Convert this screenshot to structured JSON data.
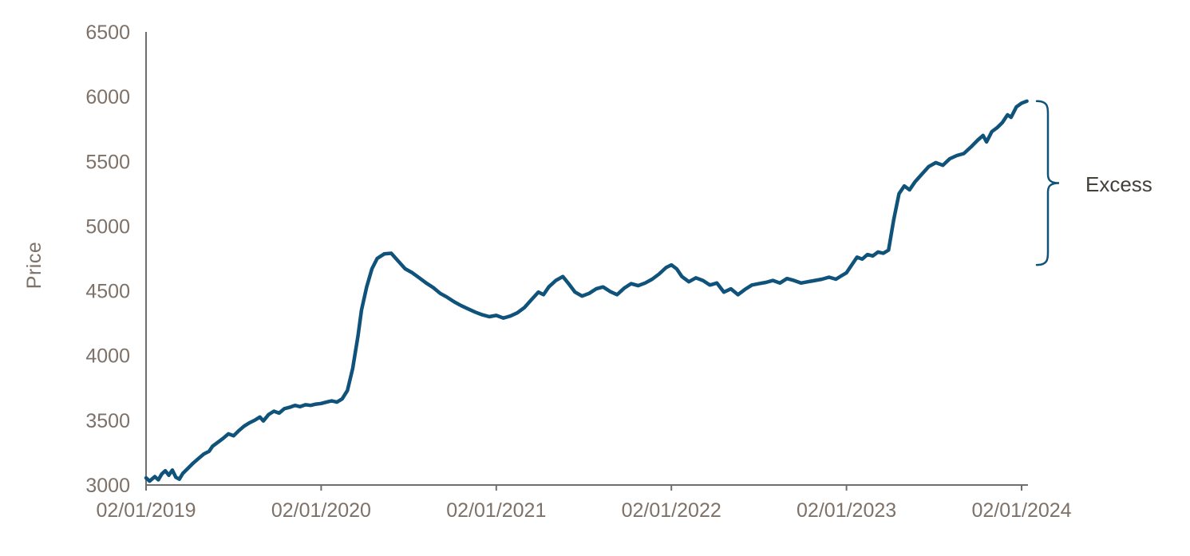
{
  "chart_data": {
    "type": "line",
    "title": "",
    "xlabel": "",
    "ylabel": "Price",
    "grid": false,
    "legend": "none",
    "ylim": [
      3000,
      6500
    ],
    "y_ticks": [
      3000,
      3500,
      4000,
      4500,
      5000,
      5500,
      6000,
      6500
    ],
    "x_tick_labels": [
      "02/01/2019",
      "02/01/2020",
      "02/01/2021",
      "02/01/2022",
      "02/01/2023",
      "02/01/2024"
    ],
    "x_unit": "years since first tick",
    "annotation": {
      "label": "Excess",
      "price_from": 4700,
      "price_to": 5965
    },
    "colors": {
      "line": "#0f527a",
      "axis_line": "#6e6e6e",
      "tick_text": "#7d7168",
      "annotation_text": "#44403a",
      "brace": "#0f527a"
    },
    "series": [
      {
        "name": "Price",
        "points": [
          [
            0.0,
            3055
          ],
          [
            0.02,
            3030
          ],
          [
            0.05,
            3065
          ],
          [
            0.07,
            3040
          ],
          [
            0.09,
            3085
          ],
          [
            0.11,
            3110
          ],
          [
            0.13,
            3075
          ],
          [
            0.15,
            3115
          ],
          [
            0.17,
            3060
          ],
          [
            0.19,
            3045
          ],
          [
            0.21,
            3090
          ],
          [
            0.24,
            3130
          ],
          [
            0.27,
            3170
          ],
          [
            0.3,
            3205
          ],
          [
            0.33,
            3240
          ],
          [
            0.36,
            3260
          ],
          [
            0.38,
            3300
          ],
          [
            0.41,
            3330
          ],
          [
            0.44,
            3360
          ],
          [
            0.47,
            3395
          ],
          [
            0.5,
            3380
          ],
          [
            0.53,
            3420
          ],
          [
            0.56,
            3455
          ],
          [
            0.59,
            3480
          ],
          [
            0.62,
            3500
          ],
          [
            0.65,
            3525
          ],
          [
            0.67,
            3495
          ],
          [
            0.7,
            3545
          ],
          [
            0.73,
            3570
          ],
          [
            0.76,
            3555
          ],
          [
            0.79,
            3590
          ],
          [
            0.82,
            3600
          ],
          [
            0.85,
            3615
          ],
          [
            0.88,
            3605
          ],
          [
            0.91,
            3620
          ],
          [
            0.94,
            3615
          ],
          [
            0.97,
            3625
          ],
          [
            1.0,
            3630
          ],
          [
            1.03,
            3640
          ],
          [
            1.06,
            3650
          ],
          [
            1.09,
            3640
          ],
          [
            1.12,
            3665
          ],
          [
            1.15,
            3730
          ],
          [
            1.18,
            3900
          ],
          [
            1.21,
            4150
          ],
          [
            1.23,
            4350
          ],
          [
            1.26,
            4530
          ],
          [
            1.29,
            4670
          ],
          [
            1.32,
            4750
          ],
          [
            1.36,
            4785
          ],
          [
            1.4,
            4790
          ],
          [
            1.44,
            4730
          ],
          [
            1.48,
            4670
          ],
          [
            1.52,
            4640
          ],
          [
            1.56,
            4600
          ],
          [
            1.6,
            4560
          ],
          [
            1.64,
            4525
          ],
          [
            1.68,
            4480
          ],
          [
            1.72,
            4450
          ],
          [
            1.76,
            4415
          ],
          [
            1.8,
            4385
          ],
          [
            1.84,
            4360
          ],
          [
            1.88,
            4335
          ],
          [
            1.92,
            4315
          ],
          [
            1.96,
            4300
          ],
          [
            2.0,
            4310
          ],
          [
            2.04,
            4290
          ],
          [
            2.08,
            4305
          ],
          [
            2.12,
            4330
          ],
          [
            2.16,
            4370
          ],
          [
            2.2,
            4430
          ],
          [
            2.24,
            4490
          ],
          [
            2.27,
            4470
          ],
          [
            2.3,
            4530
          ],
          [
            2.34,
            4580
          ],
          [
            2.38,
            4610
          ],
          [
            2.41,
            4560
          ],
          [
            2.45,
            4490
          ],
          [
            2.49,
            4460
          ],
          [
            2.53,
            4480
          ],
          [
            2.57,
            4515
          ],
          [
            2.61,
            4530
          ],
          [
            2.65,
            4495
          ],
          [
            2.69,
            4470
          ],
          [
            2.73,
            4520
          ],
          [
            2.77,
            4555
          ],
          [
            2.81,
            4540
          ],
          [
            2.85,
            4560
          ],
          [
            2.89,
            4590
          ],
          [
            2.93,
            4630
          ],
          [
            2.97,
            4680
          ],
          [
            3.0,
            4700
          ],
          [
            3.03,
            4670
          ],
          [
            3.06,
            4610
          ],
          [
            3.1,
            4570
          ],
          [
            3.14,
            4600
          ],
          [
            3.18,
            4580
          ],
          [
            3.22,
            4545
          ],
          [
            3.26,
            4560
          ],
          [
            3.3,
            4490
          ],
          [
            3.34,
            4515
          ],
          [
            3.38,
            4470
          ],
          [
            3.42,
            4510
          ],
          [
            3.46,
            4545
          ],
          [
            3.5,
            4555
          ],
          [
            3.54,
            4565
          ],
          [
            3.58,
            4580
          ],
          [
            3.62,
            4560
          ],
          [
            3.66,
            4595
          ],
          [
            3.7,
            4580
          ],
          [
            3.74,
            4560
          ],
          [
            3.78,
            4570
          ],
          [
            3.82,
            4580
          ],
          [
            3.86,
            4590
          ],
          [
            3.9,
            4605
          ],
          [
            3.94,
            4590
          ],
          [
            3.97,
            4615
          ],
          [
            4.0,
            4640
          ],
          [
            4.03,
            4700
          ],
          [
            4.06,
            4760
          ],
          [
            4.09,
            4745
          ],
          [
            4.12,
            4780
          ],
          [
            4.15,
            4770
          ],
          [
            4.18,
            4800
          ],
          [
            4.21,
            4790
          ],
          [
            4.24,
            4815
          ],
          [
            4.27,
            5050
          ],
          [
            4.3,
            5250
          ],
          [
            4.33,
            5310
          ],
          [
            4.36,
            5280
          ],
          [
            4.39,
            5340
          ],
          [
            4.43,
            5400
          ],
          [
            4.47,
            5460
          ],
          [
            4.51,
            5490
          ],
          [
            4.55,
            5470
          ],
          [
            4.59,
            5520
          ],
          [
            4.63,
            5545
          ],
          [
            4.67,
            5560
          ],
          [
            4.71,
            5610
          ],
          [
            4.75,
            5665
          ],
          [
            4.78,
            5700
          ],
          [
            4.8,
            5650
          ],
          [
            4.83,
            5730
          ],
          [
            4.86,
            5760
          ],
          [
            4.89,
            5800
          ],
          [
            4.92,
            5860
          ],
          [
            4.94,
            5840
          ],
          [
            4.97,
            5920
          ],
          [
            5.0,
            5950
          ],
          [
            5.03,
            5965
          ]
        ]
      }
    ]
  }
}
